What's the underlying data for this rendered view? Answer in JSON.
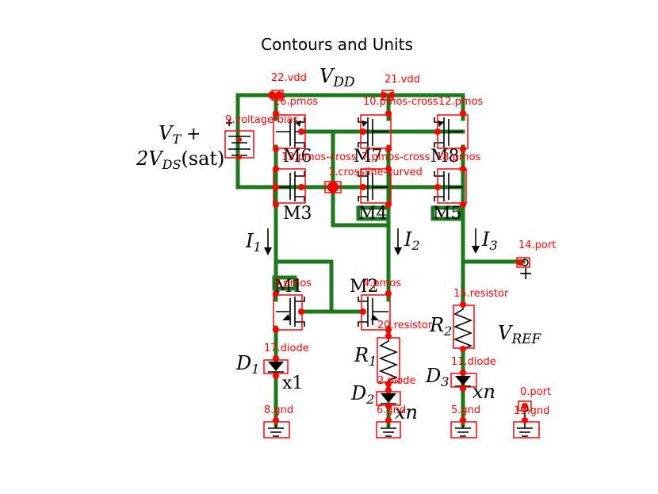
{
  "title": "Contours and Units",
  "labels": {
    "vdd_label": "V",
    "vdd_sub": "DD",
    "vt_line1a": "V",
    "vt_line1b": "T",
    "vt_line1c": " +",
    "vt_line2a": "2V",
    "vt_line2b": "DS",
    "vt_line2c": "(sat)",
    "m6": "M6",
    "m7": "M7",
    "m8": "M8",
    "m3": "M3",
    "m4": "M4",
    "m5": "M5",
    "m1": "M1",
    "m2": "M2",
    "i1": "I",
    "i1_sub": "1",
    "i2": "I",
    "i2_sub": "2",
    "i3": "I",
    "i3_sub": "3",
    "r1": "R",
    "r1_sub": "1",
    "r2": "R",
    "r2_sub": "2",
    "vref": "V",
    "vref_sub": "REF",
    "d1": "D",
    "d1_sub": "1",
    "d2": "D",
    "d2_sub": "2",
    "d3": "D",
    "d3_sub": "3",
    "x1": "x1",
    "xn2": "xn",
    "xn3": "xn",
    "plus": "+"
  },
  "components": [
    {
      "id": "22",
      "label": "22.vdd"
    },
    {
      "id": "21",
      "label": "21.vdd"
    },
    {
      "id": "16",
      "label": "16.pmos"
    },
    {
      "id": "10",
      "label": "10.pmos-cross"
    },
    {
      "id": "12",
      "label": "12.pmos"
    },
    {
      "id": "9",
      "label": "9.voltage-bias"
    },
    {
      "id": "13",
      "label": "13.pmos-cross"
    },
    {
      "id": "7",
      "label": "7.pmos-cross"
    },
    {
      "id": "18",
      "label": "18.pmos"
    },
    {
      "id": "1",
      "label": "1.crossline-curved"
    },
    {
      "id": "14",
      "label": "14.port"
    },
    {
      "id": "3",
      "label": "3.pmos"
    },
    {
      "id": "4",
      "label": "4.pmos"
    },
    {
      "id": "15",
      "label": "15.resistor"
    },
    {
      "id": "20",
      "label": "20.resistor"
    },
    {
      "id": "17",
      "label": "17.diode"
    },
    {
      "id": "11",
      "label": "11.diode"
    },
    {
      "id": "2",
      "label": "2.diode"
    },
    {
      "id": "0",
      "label": "0.port"
    },
    {
      "id": "8",
      "label": "8.gnd"
    },
    {
      "id": "6",
      "label": "6.gnd"
    },
    {
      "id": "5",
      "label": "5.gnd"
    },
    {
      "id": "19",
      "label": "19.gnd"
    }
  ]
}
